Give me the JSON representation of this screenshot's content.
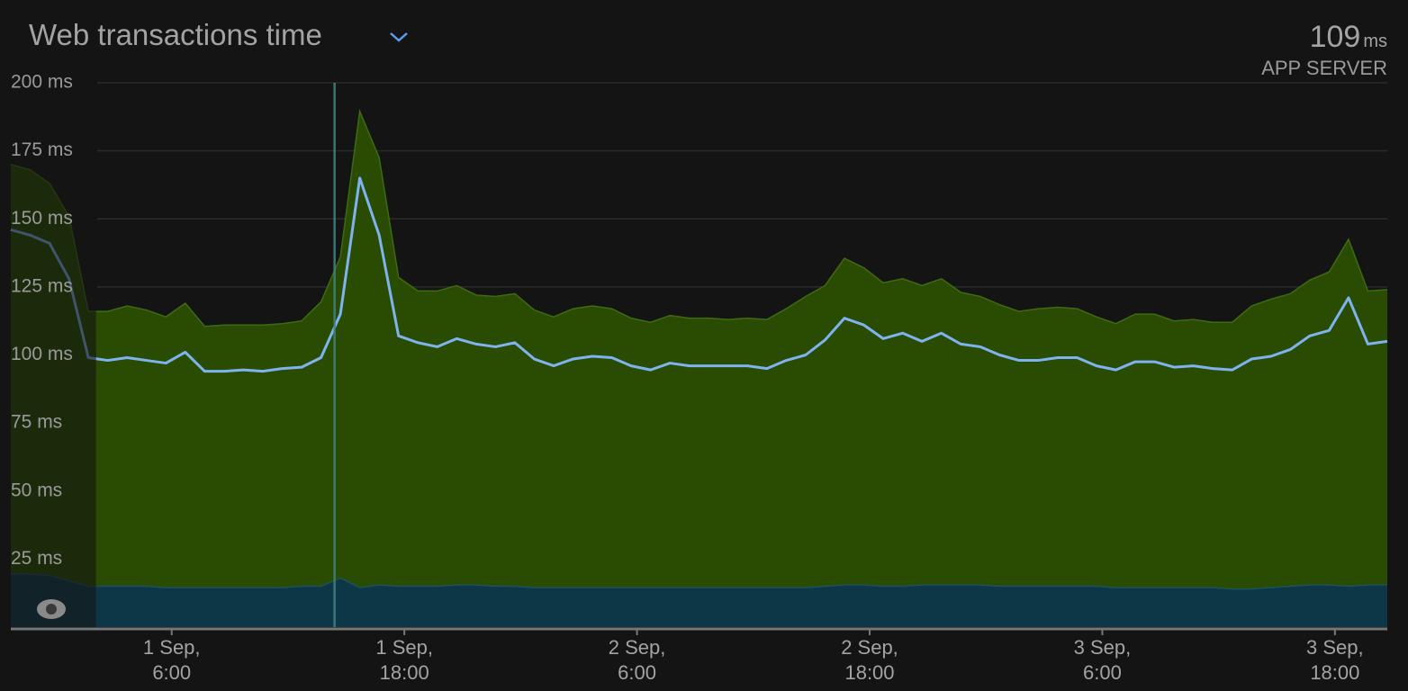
{
  "chart_data": {
    "type": "area",
    "title": "Web transactions time",
    "summary": {
      "value": 109,
      "unit": "ms",
      "label": "APP SERVER"
    },
    "stacked": false,
    "x": [
      -2.3,
      -1.3,
      -0.3,
      0.7,
      1.7,
      2.7,
      3.7,
      4.7,
      5.7,
      6.7,
      7.7,
      8.7,
      9.7,
      10.7,
      11.7,
      12.7,
      13.7,
      14.7,
      15.7,
      16.7,
      17.7,
      18.7,
      19.7,
      20.7,
      21.7,
      22.7,
      23.7,
      24.7,
      25.7,
      26.7,
      27.7,
      28.7,
      29.7,
      30.7,
      31.7,
      32.7,
      33.7,
      34.7,
      35.7,
      36.7,
      37.7,
      38.7,
      39.7,
      40.7,
      41.7,
      42.7,
      43.7,
      44.7,
      45.7,
      46.7,
      47.7,
      48.7,
      49.7,
      50.7,
      51.7,
      52.7,
      53.7,
      54.7,
      55.7,
      56.7,
      57.7,
      58.7,
      59.7,
      60.7,
      61.7,
      62.7,
      63.7,
      64.7,
      65.7,
      66.7,
      67.7,
      68.7
    ],
    "series": [
      {
        "kind": "area",
        "color": "#2a4c02",
        "edge_color": "#3f6a14",
        "values": [
          170,
          168,
          163,
          151,
          116,
          116,
          118,
          116.5,
          114,
          119,
          110.5,
          111,
          111,
          111,
          111.5,
          112.5,
          119.5,
          136,
          189.5,
          172.5,
          128.5,
          123.5,
          123.5,
          125.5,
          122,
          121.5,
          122.5,
          116.5,
          114,
          117,
          118,
          117,
          113.5,
          112,
          114.5,
          113.5,
          113.5,
          113,
          113.5,
          113,
          117,
          121.5,
          125.5,
          135.5,
          132,
          126.5,
          128,
          125.5,
          128,
          123,
          121.5,
          118.5,
          116,
          117,
          117.5,
          117,
          114,
          111.5,
          115,
          115,
          112.5,
          113,
          112,
          112,
          118,
          120.5,
          122.5,
          127.5,
          130.5,
          142.5,
          123.5,
          124
        ]
      },
      {
        "kind": "area",
        "color": "#0d3747",
        "edge_color": "#1d5060",
        "values": [
          19.5,
          19.5,
          19,
          17,
          15,
          15,
          15,
          15,
          14.5,
          14.5,
          14.5,
          14.5,
          14.5,
          14.5,
          14.5,
          15,
          15,
          18,
          14.5,
          15.5,
          15,
          15,
          15,
          15.5,
          15.5,
          15,
          15,
          14.5,
          14.5,
          14.5,
          14.5,
          14.5,
          14.5,
          14.5,
          14.5,
          14.5,
          14.5,
          14.5,
          14.5,
          14.5,
          14.5,
          14.5,
          15,
          15.5,
          15.5,
          15,
          15,
          15.5,
          15.5,
          15.5,
          15.5,
          15,
          15,
          15,
          15,
          15,
          15,
          14.5,
          14.5,
          14.5,
          14.5,
          14.5,
          14.5,
          14,
          14,
          14.5,
          15,
          15.5,
          15.5,
          15,
          15.5,
          15.5
        ]
      },
      {
        "kind": "line",
        "color": "#7fb3f0",
        "values": [
          146,
          144,
          141,
          128,
          99,
          98,
          99,
          98,
          97,
          101,
          94,
          94,
          94.5,
          94,
          95,
          95.5,
          99,
          115,
          165,
          144,
          107,
          104.5,
          103,
          106,
          104,
          103,
          104.5,
          98.5,
          96,
          98.5,
          99.5,
          99,
          96,
          94.5,
          97,
          96,
          96,
          96,
          96,
          95,
          98,
          100,
          105.5,
          113.5,
          111,
          106,
          108,
          105,
          108,
          104,
          103,
          100,
          98,
          98,
          99,
          99,
          96,
          94.5,
          97.5,
          97.5,
          95.5,
          96,
          95,
          94.5,
          98.5,
          99.5,
          102,
          107,
          109,
          121,
          104,
          105
        ]
      }
    ],
    "xlim": [
      -2.3,
      68.7
    ],
    "xticks": [
      {
        "value": 6,
        "label": "1 Sep,\n6:00"
      },
      {
        "value": 18,
        "label": "1 Sep,\n18:00"
      },
      {
        "value": 30,
        "label": "2 Sep,\n6:00"
      },
      {
        "value": 42,
        "label": "2 Sep,\n18:00"
      },
      {
        "value": 54,
        "label": "3 Sep,\n6:00"
      },
      {
        "value": 66,
        "label": "3 Sep,\n18:00"
      }
    ],
    "ylim": [
      0,
      200
    ],
    "yticks": [
      {
        "value": 25,
        "label": "25 ms"
      },
      {
        "value": 50,
        "label": "50 ms"
      },
      {
        "value": 75,
        "label": "75 ms"
      },
      {
        "value": 100,
        "label": "100 ms"
      },
      {
        "value": 125,
        "label": "125 ms"
      },
      {
        "value": 150,
        "label": "150 ms"
      },
      {
        "value": 175,
        "label": "175 ms"
      },
      {
        "value": 200,
        "label": "200 ms"
      }
    ],
    "grid": true,
    "markers": [
      14.4
    ],
    "dimmed_range": [
      -2.3,
      2.1
    ]
  }
}
